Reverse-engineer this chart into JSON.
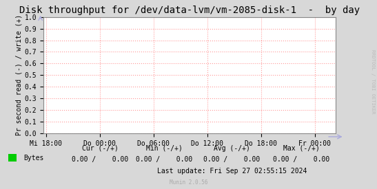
{
  "title": "Disk throughput for /dev/data-lvm/vm-2085-disk-1  -  by day",
  "ylabel": "Pr second read (-) / write (+)",
  "background_color": "#d8d8d8",
  "plot_background_color": "#ffffff",
  "grid_color": "#ff9999",
  "border_color": "#888888",
  "ylim": [
    0.0,
    1.0
  ],
  "yticks": [
    0.0,
    0.1,
    0.2,
    0.3,
    0.4,
    0.5,
    0.6,
    0.7,
    0.8,
    0.9,
    1.0
  ],
  "xtick_labels": [
    "Mi 18:00",
    "Do 00:00",
    "Do 06:00",
    "Do 12:00",
    "Do 18:00",
    "Fr 00:00"
  ],
  "x_tick_positions": [
    0,
    6,
    12,
    18,
    24,
    30
  ],
  "xlim": [
    -0.3,
    32.3
  ],
  "watermark": "RRDTOOL / TOBI OETIKER",
  "legend_label": "Bytes",
  "legend_color": "#00cc00",
  "footer_cur": "Cur (-/+)",
  "footer_min": "Min (-/+)",
  "footer_avg": "Avg (-/+)",
  "footer_max": "Max (-/+)",
  "cur_val": "0.00 /    0.00",
  "min_val": "0.00 /    0.00",
  "avg_val": "0.00 /    0.00",
  "max_val": "0.00 /    0.00",
  "last_update": "Last update: Fri Sep 27 02:55:15 2024",
  "munin_version": "Munin 2.0.56",
  "title_fontsize": 10,
  "axis_fontsize": 7,
  "tick_fontsize": 7,
  "footer_fontsize": 7,
  "watermark_fontsize": 5,
  "arrow_color": "#aaaadd"
}
